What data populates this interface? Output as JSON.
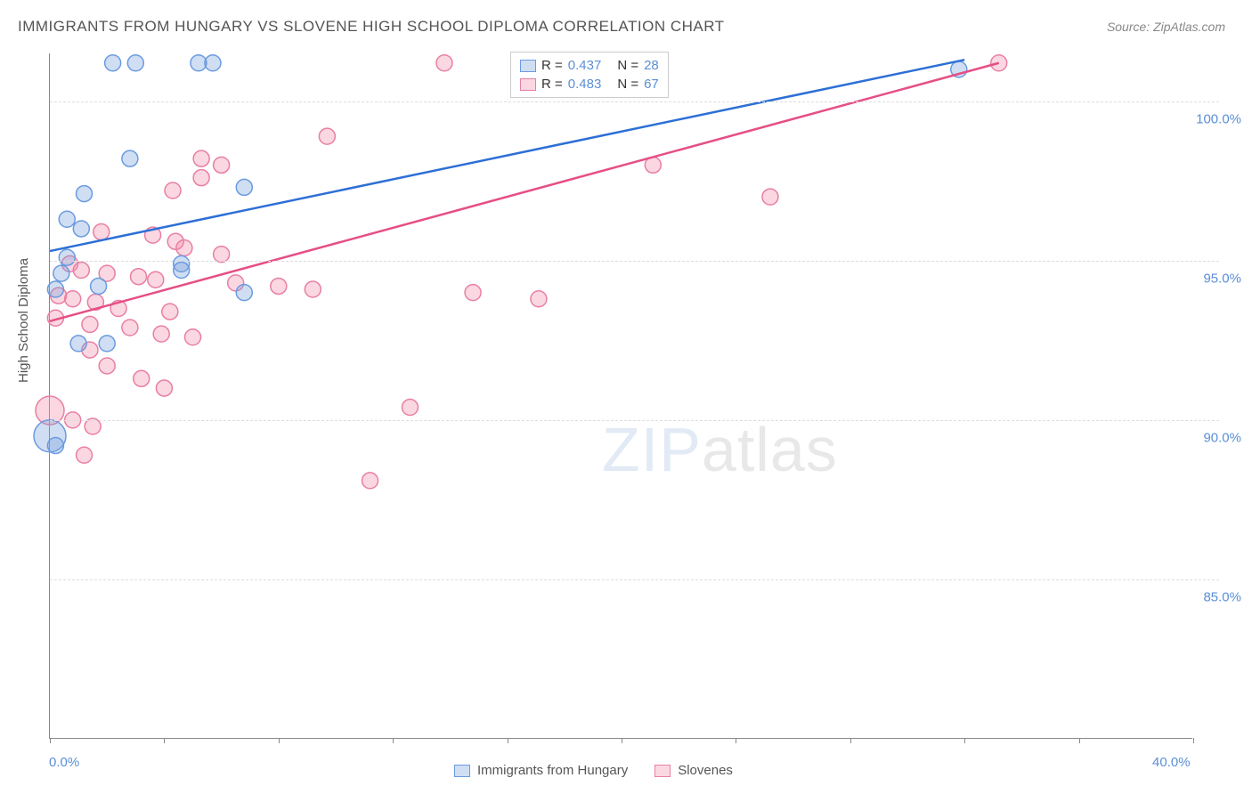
{
  "title": "IMMIGRANTS FROM HUNGARY VS SLOVENE HIGH SCHOOL DIPLOMA CORRELATION CHART",
  "source_label": "Source:",
  "source_value": "ZipAtlas.com",
  "ylabel": "High School Diploma",
  "watermark_a": "ZIP",
  "watermark_b": "atlas",
  "chart": {
    "type": "scatter",
    "background_color": "#ffffff",
    "grid_color": "#dddddd",
    "axis_color": "#888888",
    "xlim": [
      0,
      40
    ],
    "ylim": [
      80,
      101.5
    ],
    "yticks": [
      85,
      90,
      95,
      100
    ],
    "ytick_labels": [
      "85.0%",
      "90.0%",
      "95.0%",
      "100.0%"
    ],
    "xtick_positions": [
      0,
      4,
      8,
      12,
      16,
      20,
      24,
      28,
      32,
      36,
      40
    ],
    "xtick_labels": {
      "0": "0.0%",
      "40": "40.0%"
    },
    "tick_label_color": "#5b8fd6",
    "tick_label_fontsize": 15,
    "label_fontsize": 15,
    "marker_radius": 9,
    "marker_stroke_width": 1.5,
    "line_width": 2.5,
    "series": [
      {
        "id": "hungary",
        "name": "Immigrants from Hungary",
        "fill": "rgba(120,160,220,0.35)",
        "stroke": "#6a9be0",
        "line_color": "#2d6fd6",
        "R": "0.437",
        "N": "28",
        "trend": {
          "x1": 0,
          "y1": 95.3,
          "x2": 32,
          "y2": 101.3
        },
        "points": [
          [
            2.2,
            101.2
          ],
          [
            3.0,
            101.2
          ],
          [
            5.2,
            101.2
          ],
          [
            5.7,
            101.2
          ],
          [
            31.8,
            101.0
          ],
          [
            2.8,
            98.2
          ],
          [
            1.2,
            97.1
          ],
          [
            6.8,
            97.3
          ],
          [
            0.6,
            96.3
          ],
          [
            1.1,
            96.0
          ],
          [
            0.6,
            95.1
          ],
          [
            4.6,
            94.9
          ],
          [
            4.6,
            94.7
          ],
          [
            0.4,
            94.6
          ],
          [
            0.2,
            94.1
          ],
          [
            1.7,
            94.2
          ],
          [
            6.8,
            94.0
          ],
          [
            1.0,
            92.4
          ],
          [
            2.0,
            92.4
          ],
          [
            0.2,
            89.2
          ]
        ],
        "big_points": [
          [
            0.0,
            89.5,
            18
          ]
        ]
      },
      {
        "id": "slovenes",
        "name": "Slovenes",
        "fill": "rgba(240,140,170,0.35)",
        "stroke": "#e97fa4",
        "line_color": "#e64e86",
        "R": "0.483",
        "N": "67",
        "trend": {
          "x1": 0,
          "y1": 93.1,
          "x2": 33.2,
          "y2": 101.2
        },
        "points": [
          [
            13.8,
            101.2
          ],
          [
            33.2,
            101.2
          ],
          [
            9.7,
            98.9
          ],
          [
            5.3,
            98.2
          ],
          [
            6.0,
            98.0
          ],
          [
            5.3,
            97.6
          ],
          [
            21.1,
            98.0
          ],
          [
            4.3,
            97.2
          ],
          [
            25.2,
            97.0
          ],
          [
            1.8,
            95.9
          ],
          [
            3.6,
            95.8
          ],
          [
            4.4,
            95.6
          ],
          [
            4.7,
            95.4
          ],
          [
            6.0,
            95.2
          ],
          [
            0.7,
            94.9
          ],
          [
            1.1,
            94.7
          ],
          [
            2.0,
            94.6
          ],
          [
            3.1,
            94.5
          ],
          [
            3.7,
            94.4
          ],
          [
            6.5,
            94.3
          ],
          [
            8.0,
            94.2
          ],
          [
            9.2,
            94.1
          ],
          [
            0.3,
            93.9
          ],
          [
            0.8,
            93.8
          ],
          [
            1.6,
            93.7
          ],
          [
            2.4,
            93.5
          ],
          [
            4.2,
            93.4
          ],
          [
            14.8,
            94.0
          ],
          [
            0.2,
            93.2
          ],
          [
            1.4,
            93.0
          ],
          [
            2.8,
            92.9
          ],
          [
            3.9,
            92.7
          ],
          [
            5.0,
            92.6
          ],
          [
            1.4,
            92.2
          ],
          [
            17.1,
            93.8
          ],
          [
            2.0,
            91.7
          ],
          [
            3.2,
            91.3
          ],
          [
            4.0,
            91.0
          ],
          [
            12.6,
            90.4
          ],
          [
            0.8,
            90.0
          ],
          [
            1.5,
            89.8
          ],
          [
            1.2,
            88.9
          ],
          [
            11.2,
            88.1
          ]
        ],
        "big_points": [
          [
            0.0,
            90.3,
            16
          ]
        ]
      }
    ]
  }
}
